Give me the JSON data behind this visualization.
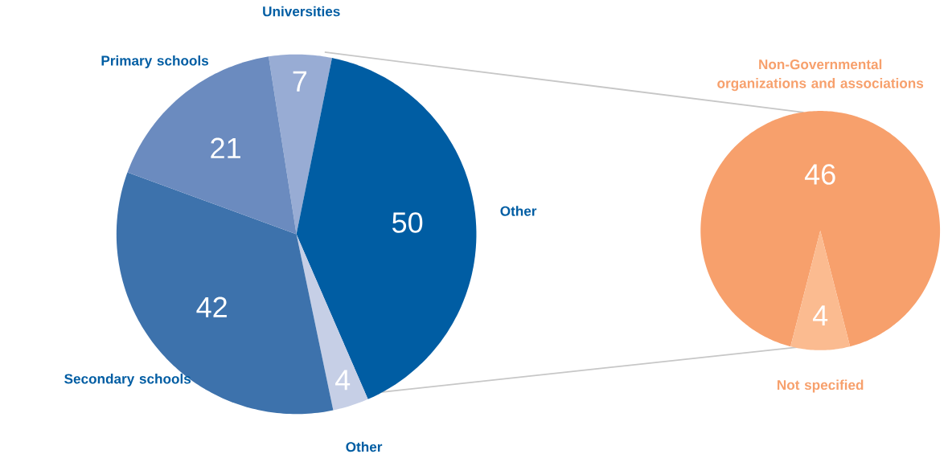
{
  "chart_data": [
    {
      "type": "pie",
      "categories": [
        "Universities",
        "Other",
        "Other",
        "Secondary schools",
        "Primary schools"
      ],
      "values": [
        7,
        50,
        4,
        42,
        21
      ],
      "colors": [
        "#98acd4",
        "#005da3",
        "#c6cfe6",
        "#3d72ac",
        "#6b8bbf"
      ],
      "data_labels": true
    },
    {
      "type": "pie",
      "categories": [
        "Non-Governmental organizations and associations",
        "Not specified"
      ],
      "values": [
        46,
        4
      ],
      "colors": [
        "#f7a06c",
        "#fbbb90"
      ],
      "data_labels": true
    }
  ]
}
